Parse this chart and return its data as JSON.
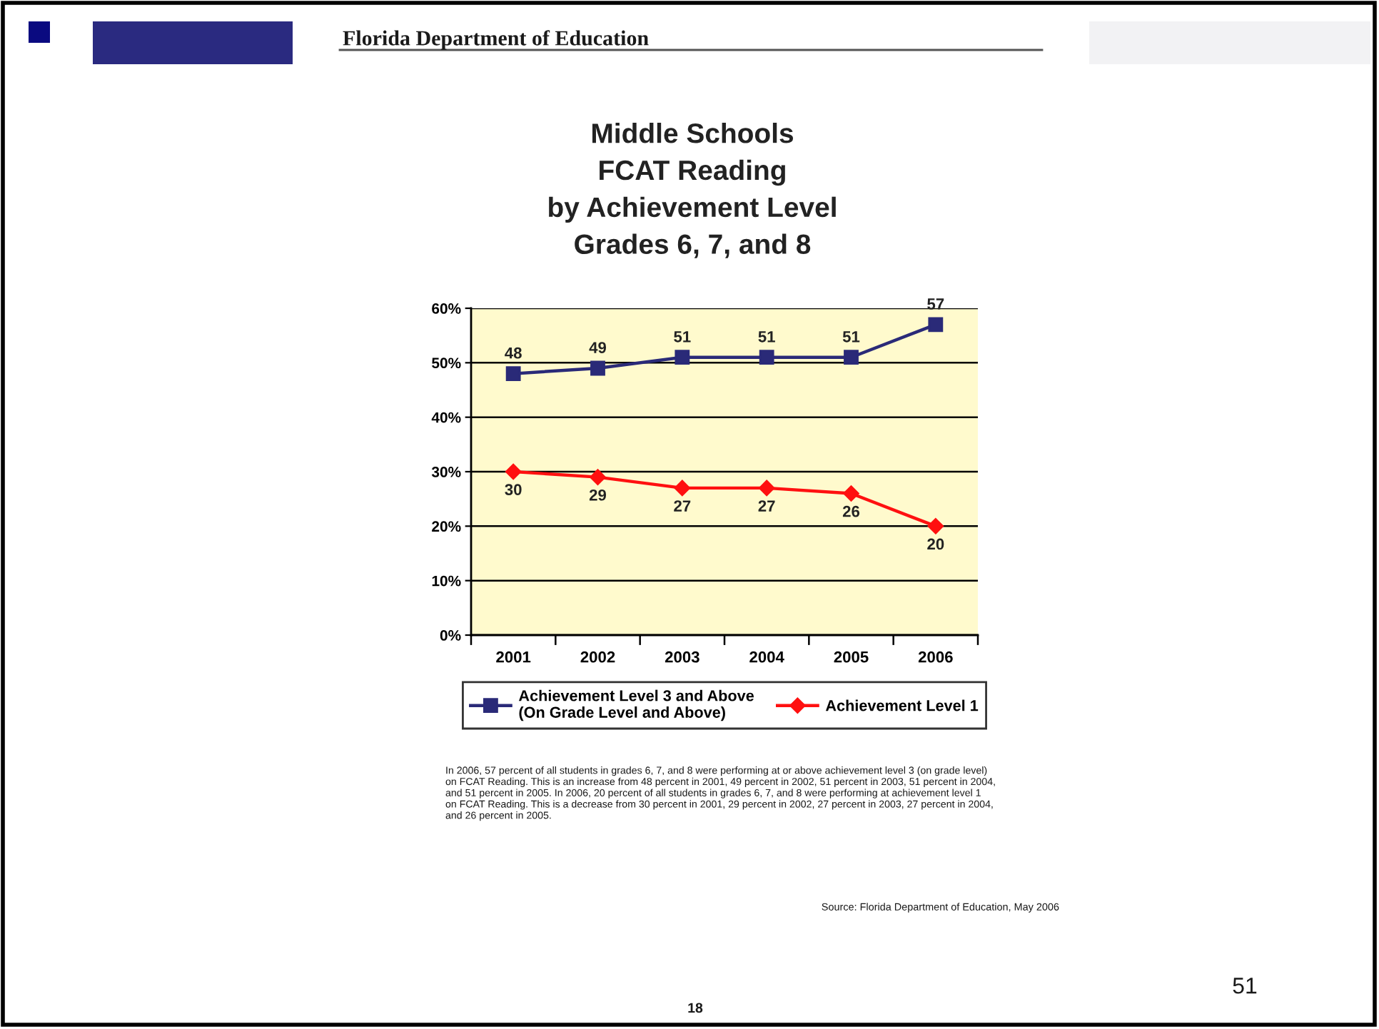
{
  "chart_data": {
    "type": "line",
    "title": "Middle Schools\nFCAT Reading\nby Achievement Level\nGrades 6, 7, and 8",
    "categories": [
      "2001",
      "2002",
      "2003",
      "2004",
      "2005",
      "2006"
    ],
    "series": [
      {
        "name": "Achievement Level 3 and Above\n(On Grade Level and Above)",
        "color": "#2a2a78",
        "marker": "square",
        "values": [
          48,
          49,
          51,
          51,
          51,
          57
        ]
      },
      {
        "name": "Achievement Level 1",
        "color": "#ff1010",
        "marker": "diamond",
        "values": [
          30,
          29,
          27,
          27,
          26,
          20
        ]
      }
    ],
    "ylim": [
      0,
      60
    ],
    "yticks": [
      {
        "value": 0,
        "label": "0%"
      },
      {
        "value": 10,
        "label": "10%"
      },
      {
        "value": 20,
        "label": "20%"
      },
      {
        "value": 30,
        "label": "30%"
      },
      {
        "value": 40,
        "label": "40%"
      },
      {
        "value": 50,
        "label": "50%"
      },
      {
        "value": 60,
        "label": "60%"
      }
    ],
    "grid": "y",
    "legend": "bottom",
    "data_labels": true,
    "line_style": "solid",
    "annotations": [
      "Florida Department of Education",
      "In 2006, 57 percent of all students in grades 6, 7, and 8 were performing at or above achievement level 3 (on grade level)\non FCAT Reading. This is an increase from 48 percent in 2001, 49 percent in 2002, 51 percent in 2003, 51 percent in 2004,\nand 51 percent in 2005. In 2006, 20 percent of all students in grades 6, 7, and 8 were performing at achievement level 1\non FCAT Reading. This is a decrease from 30 percent in 2001, 29 percent in 2002, 27 percent in 2003, 27 percent in 2004,\nand 26 percent in 2005.",
      "Source: Florida Department of Education, May 2006",
      "51",
      "18"
    ]
  }
}
